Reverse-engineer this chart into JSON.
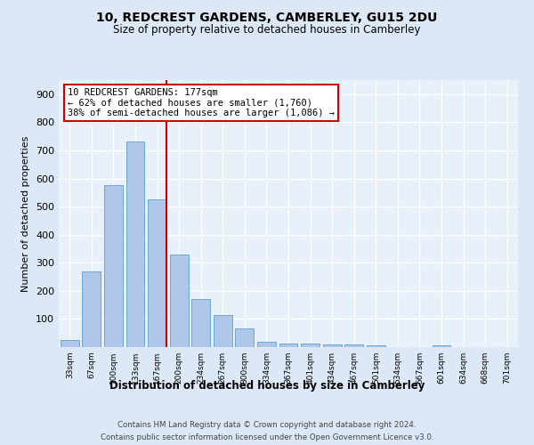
{
  "title1": "10, REDCREST GARDENS, CAMBERLEY, GU15 2DU",
  "title2": "Size of property relative to detached houses in Camberley",
  "xlabel": "Distribution of detached houses by size in Camberley",
  "ylabel": "Number of detached properties",
  "categories": [
    "33sqm",
    "67sqm",
    "100sqm",
    "133sqm",
    "167sqm",
    "200sqm",
    "234sqm",
    "267sqm",
    "300sqm",
    "334sqm",
    "367sqm",
    "401sqm",
    "434sqm",
    "467sqm",
    "501sqm",
    "534sqm",
    "567sqm",
    "601sqm",
    "634sqm",
    "668sqm",
    "701sqm"
  ],
  "values": [
    25,
    270,
    575,
    730,
    525,
    330,
    170,
    115,
    68,
    20,
    13,
    13,
    10,
    8,
    7,
    0,
    0,
    6,
    0,
    0,
    0
  ],
  "bar_color": "#aec6e8",
  "bar_edge_color": "#5a9fd4",
  "vline_color": "#cc0000",
  "annotation_text": "10 REDCREST GARDENS: 177sqm\n← 62% of detached houses are smaller (1,760)\n38% of semi-detached houses are larger (1,086) →",
  "annotation_box_color": "#cc0000",
  "background_color": "#dce8f5",
  "plot_bg_color": "#e8f0fa",
  "grid_color": "#ffffff",
  "footer_line1": "Contains HM Land Registry data © Crown copyright and database right 2024.",
  "footer_line2": "Contains public sector information licensed under the Open Government Licence v3.0.",
  "ylim": [
    0,
    950
  ],
  "yticks": [
    0,
    100,
    200,
    300,
    400,
    500,
    600,
    700,
    800,
    900
  ]
}
